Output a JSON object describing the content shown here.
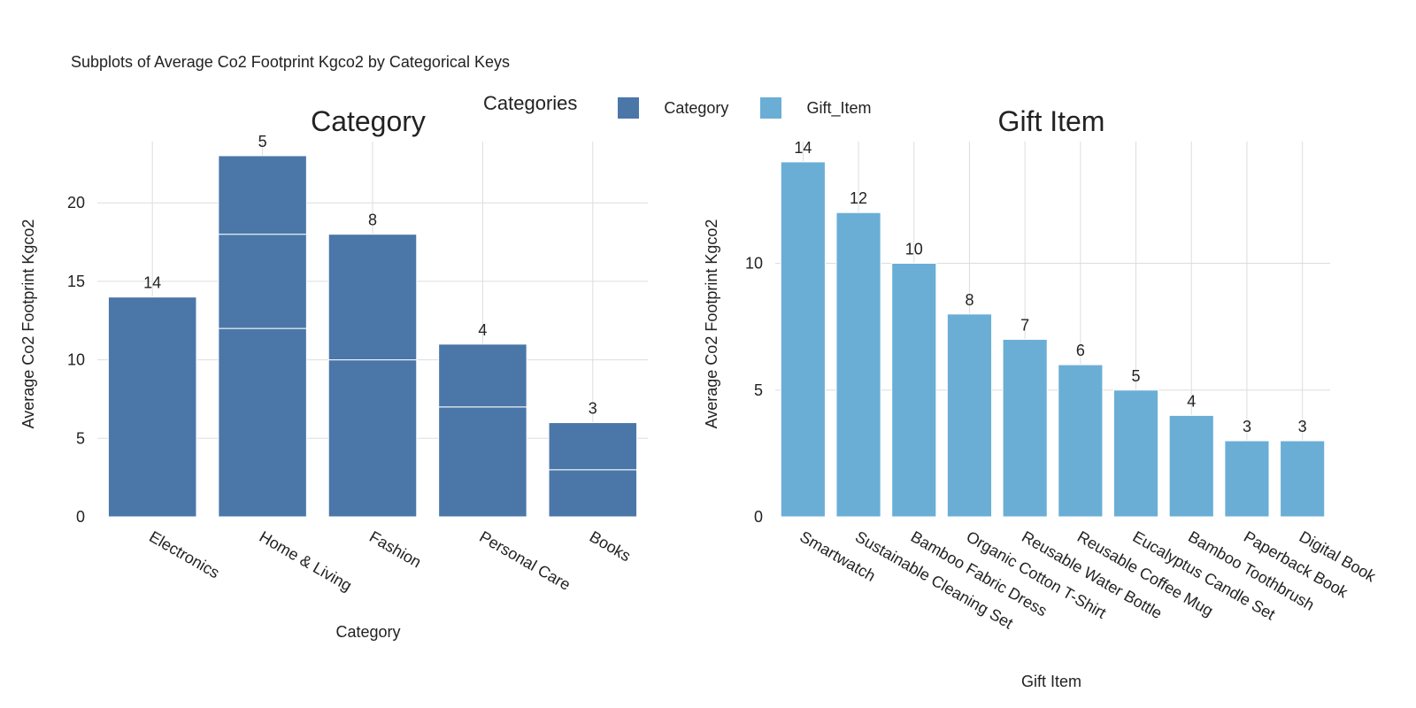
{
  "title": "Subplots of Average Co2 Footprint Kgco2 by Categorical Keys",
  "legend": {
    "title": "Categories",
    "items": [
      {
        "label": "Category",
        "color": "#4a77a8"
      },
      {
        "label": "Gift_Item",
        "color": "#6aaed6"
      }
    ]
  },
  "chart_data": [
    {
      "type": "bar",
      "title": "Category",
      "xlabel": "Category",
      "ylabel": "Average Co2 Footprint Kgco2",
      "color": "#4a77a8",
      "categories": [
        "Electronics",
        "Home & Living",
        "Fashion",
        "Personal Care",
        "Books"
      ],
      "stacked_segments": [
        [
          14
        ],
        [
          12,
          6,
          5
        ],
        [
          10,
          8
        ],
        [
          7,
          4
        ],
        [
          3,
          3
        ]
      ],
      "data_labels": [
        "14",
        "5",
        "8",
        "4",
        "3"
      ],
      "totals": [
        14,
        23,
        18,
        11,
        6
      ],
      "ylim": [
        0,
        23.9
      ],
      "yticks": [
        0,
        5,
        10,
        15,
        20
      ],
      "grid": true
    },
    {
      "type": "bar",
      "title": "Gift Item",
      "xlabel": "Gift Item",
      "ylabel": "Average Co2 Footprint Kgco2",
      "color": "#6aaed6",
      "categories": [
        "Smartwatch",
        "Sustainable Cleaning Set",
        "Bamboo Fabric Dress",
        "Organic Cotton T-Shirt",
        "Reusable Water Bottle",
        "Reusable Coffee Mug",
        "Eucalyptus Candle Set",
        "Bamboo Toothbrush",
        "Paperback Book",
        "Digital Book"
      ],
      "values": [
        14,
        12,
        10,
        8,
        7,
        6,
        5,
        4,
        3,
        3
      ],
      "data_labels": [
        "14",
        "12",
        "10",
        "8",
        "7",
        "6",
        "5",
        "4",
        "3",
        "3"
      ],
      "ylim": [
        0,
        14.8
      ],
      "yticks": [
        0,
        5,
        10
      ],
      "grid": true
    }
  ]
}
